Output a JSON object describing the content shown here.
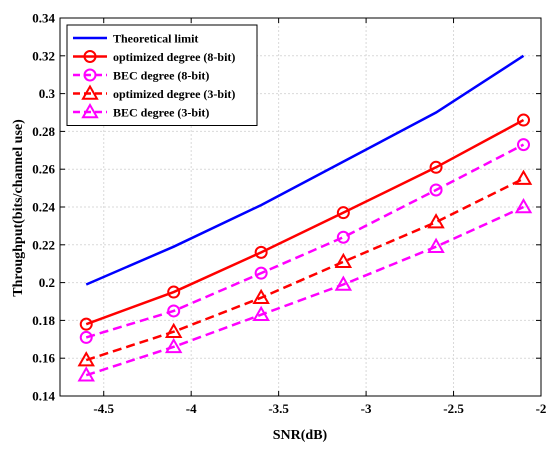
{
  "chart_data": {
    "type": "line",
    "xlabel": "SNR(dB)",
    "ylabel": "Throughput(bits/channel use)",
    "xlim": [
      -4.75,
      -2.0
    ],
    "ylim": [
      0.14,
      0.34
    ],
    "xticks": [
      -4.5,
      -4,
      -3.5,
      -3,
      -2.5,
      -2
    ],
    "xtick_labels": [
      "-4.5",
      "-4",
      "-3.5",
      "-3",
      "-2.5",
      "-2"
    ],
    "yticks": [
      0.14,
      0.16,
      0.18,
      0.2,
      0.22,
      0.24,
      0.26,
      0.28,
      0.3,
      0.32,
      0.34
    ],
    "ytick_labels": [
      "0.14",
      "0.16",
      "0.18",
      "0.2",
      "0.22",
      "0.24",
      "0.26",
      "0.28",
      "0.3",
      "0.32",
      "0.34"
    ],
    "grid": true,
    "legend_position": "top-left",
    "x": [
      -4.6,
      -4.1,
      -3.6,
      -3.13,
      -2.6,
      -2.1
    ],
    "series": [
      {
        "name": "Theoretical limit",
        "color": "#0000ff",
        "dash": "solid",
        "marker": "none",
        "values": [
          0.199,
          0.219,
          0.241,
          0.264,
          0.29,
          0.32
        ]
      },
      {
        "name": "optimized degree (8-bit)",
        "color": "#ff0000",
        "dash": "solid",
        "marker": "circle",
        "values": [
          0.178,
          0.195,
          0.216,
          0.237,
          0.261,
          0.286
        ]
      },
      {
        "name": "BEC degree (8-bit)",
        "color": "#ff00ff",
        "dash": "dashed",
        "marker": "circle",
        "values": [
          0.171,
          0.185,
          0.205,
          0.224,
          0.249,
          0.273
        ]
      },
      {
        "name": "optimized degree (3-bit)",
        "color": "#ff0000",
        "dash": "dashed",
        "marker": "triangle",
        "values": [
          0.159,
          0.174,
          0.192,
          0.211,
          0.232,
          0.255
        ]
      },
      {
        "name": "BEC degree (3-bit)",
        "color": "#ff00ff",
        "dash": "dashed",
        "marker": "triangle",
        "values": [
          0.151,
          0.166,
          0.183,
          0.199,
          0.219,
          0.24
        ]
      }
    ]
  }
}
